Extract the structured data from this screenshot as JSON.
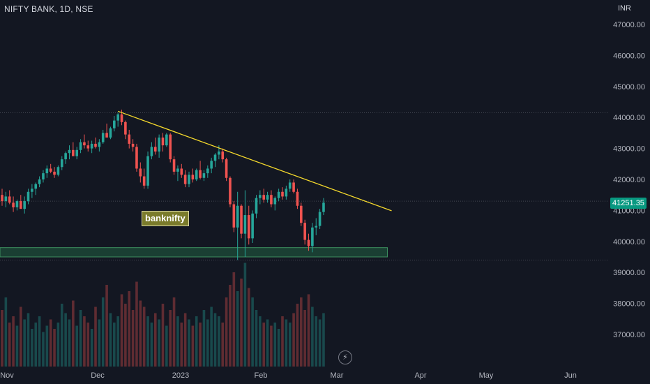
{
  "header": {
    "symbol_title": "NIFTY BANK, 1D, NSE",
    "currency": "INR"
  },
  "annotation_label": "banknifty",
  "last_price_label": "41251.35",
  "event_icon": "lightning-icon",
  "colors": {
    "background": "#131722",
    "up": "#26a69a",
    "down": "#ef5350",
    "trendline": "#f5d92c",
    "zone_fill": "#1e4d3a",
    "zone_border": "#3d8f5f",
    "text": "#b2b5be",
    "hline": "#434651"
  },
  "chart_data": {
    "type": "candlestick",
    "title": "NIFTY BANK, 1D, NSE",
    "y_axis": {
      "ticks": [
        "47000.00",
        "46000.00",
        "45000.00",
        "44000.00",
        "43000.00",
        "42000.00",
        "41000.00",
        "40000.00",
        "39000.00",
        "38000.00",
        "37000.00"
      ],
      "range": [
        36000,
        47500
      ]
    },
    "x_axis": {
      "labels": [
        "Nov",
        "Dec",
        "2023",
        "Feb",
        "Mar",
        "Apr",
        "May",
        "Jun"
      ]
    },
    "last_price": 41251.35,
    "ohlc": [
      [
        41500,
        41700,
        41150,
        41300
      ],
      [
        41300,
        41600,
        41100,
        41450
      ],
      [
        41450,
        41650,
        41200,
        41250
      ],
      [
        41250,
        41450,
        40950,
        41100
      ],
      [
        41100,
        41350,
        41000,
        41300
      ],
      [
        41300,
        41500,
        41150,
        41050
      ],
      [
        41050,
        41450,
        40900,
        41300
      ],
      [
        41300,
        41700,
        41200,
        41600
      ],
      [
        41600,
        41850,
        41400,
        41700
      ],
      [
        41700,
        41900,
        41500,
        41850
      ],
      [
        41850,
        42100,
        41750,
        42000
      ],
      [
        42000,
        42300,
        41900,
        42200
      ],
      [
        42200,
        42450,
        42050,
        42350
      ],
      [
        42350,
        42500,
        42200,
        42250
      ],
      [
        42250,
        42400,
        42050,
        42150
      ],
      [
        42150,
        42450,
        42100,
        42400
      ],
      [
        42400,
        42750,
        42300,
        42650
      ],
      [
        42650,
        42900,
        42500,
        42850
      ],
      [
        42850,
        43100,
        42650,
        42950
      ],
      [
        42950,
        43200,
        42800,
        42750
      ],
      [
        42750,
        43050,
        42650,
        42950
      ],
      [
        42950,
        43300,
        42850,
        43200
      ],
      [
        43200,
        43450,
        43000,
        43100
      ],
      [
        43100,
        43250,
        42900,
        43000
      ],
      [
        43000,
        43250,
        42850,
        43150
      ],
      [
        43150,
        43350,
        43000,
        43050
      ],
      [
        43050,
        43300,
        42900,
        43200
      ],
      [
        43200,
        43600,
        43150,
        43500
      ],
      [
        43500,
        43800,
        43400,
        43350
      ],
      [
        43350,
        43700,
        43300,
        43650
      ],
      [
        43650,
        44050,
        43550,
        43900
      ],
      [
        43900,
        44150,
        43700,
        44100
      ],
      [
        44100,
        44250,
        43750,
        43850
      ],
      [
        43850,
        43900,
        43300,
        43450
      ],
      [
        43450,
        43600,
        43000,
        43150
      ],
      [
        43150,
        43300,
        42900,
        43050
      ],
      [
        43050,
        43150,
        42250,
        42350
      ],
      [
        42350,
        42550,
        41900,
        42100
      ],
      [
        42100,
        42350,
        41700,
        41800
      ],
      [
        41800,
        42900,
        41700,
        42750
      ],
      [
        42750,
        43200,
        42650,
        43050
      ],
      [
        43050,
        43350,
        42800,
        42900
      ],
      [
        42900,
        43450,
        42700,
        43350
      ],
      [
        43350,
        43500,
        42900,
        43100
      ],
      [
        43100,
        43500,
        43050,
        43450
      ],
      [
        43450,
        43500,
        42550,
        42650
      ],
      [
        42650,
        42750,
        42150,
        42250
      ],
      [
        42250,
        42450,
        41950,
        42350
      ],
      [
        42350,
        42500,
        42050,
        42150
      ],
      [
        42150,
        42300,
        41750,
        41850
      ],
      [
        41850,
        42250,
        41750,
        42150
      ],
      [
        42150,
        42350,
        41900,
        42000
      ],
      [
        42000,
        42350,
        41950,
        42300
      ],
      [
        42300,
        42600,
        42000,
        42050
      ],
      [
        42050,
        42300,
        41950,
        42200
      ],
      [
        42200,
        42450,
        42050,
        42350
      ],
      [
        42350,
        42700,
        42200,
        42600
      ],
      [
        42600,
        42850,
        42400,
        42800
      ],
      [
        42800,
        43100,
        42650,
        42900
      ],
      [
        42900,
        43000,
        42550,
        42650
      ],
      [
        42650,
        42700,
        41950,
        42050
      ],
      [
        42050,
        42100,
        41100,
        41200
      ],
      [
        41200,
        41300,
        40300,
        40450
      ],
      [
        40450,
        41600,
        39400,
        41150
      ],
      [
        41150,
        41200,
        40100,
        40250
      ],
      [
        40250,
        41650,
        39500,
        40850
      ],
      [
        40850,
        41150,
        39900,
        40100
      ],
      [
        40100,
        41000,
        39950,
        40900
      ],
      [
        40900,
        41500,
        40750,
        41400
      ],
      [
        41400,
        41650,
        41200,
        41500
      ],
      [
        41500,
        41700,
        41250,
        41350
      ],
      [
        41350,
        41600,
        41250,
        41500
      ],
      [
        41500,
        41650,
        41100,
        41200
      ],
      [
        41200,
        41450,
        41000,
        41400
      ],
      [
        41400,
        41700,
        41300,
        41600
      ],
      [
        41600,
        41750,
        41350,
        41450
      ],
      [
        41450,
        41800,
        41350,
        41700
      ],
      [
        41700,
        42000,
        41600,
        41900
      ],
      [
        41900,
        42000,
        41550,
        41600
      ],
      [
        41600,
        41700,
        41050,
        41150
      ],
      [
        41150,
        41250,
        40500,
        40600
      ],
      [
        40600,
        40700,
        39900,
        40050
      ],
      [
        40050,
        40250,
        39700,
        39850
      ],
      [
        39850,
        40600,
        39650,
        40450
      ],
      [
        40450,
        40750,
        40200,
        40500
      ],
      [
        40500,
        41050,
        40400,
        40950
      ],
      [
        40950,
        41400,
        40850,
        41250
      ]
    ],
    "volume": [
      1.8,
      2.2,
      1.4,
      1.6,
      1.3,
      1.9,
      1.5,
      1.7,
      1.2,
      1.4,
      1.6,
      1.1,
      1.3,
      1.5,
      1.2,
      1.4,
      2.0,
      1.7,
      1.5,
      2.1,
      1.3,
      1.8,
      1.6,
      1.4,
      1.2,
      1.9,
      1.5,
      2.2,
      2.6,
      1.7,
      1.4,
      1.6,
      2.3,
      2.0,
      2.4,
      1.8,
      2.7,
      2.1,
      1.9,
      1.6,
      1.4,
      1.7,
      1.5,
      2.0,
      1.3,
      1.8,
      2.2,
      1.6,
      1.4,
      1.7,
      1.5,
      1.3,
      1.6,
      1.4,
      1.8,
      1.5,
      1.9,
      1.7,
      1.6,
      1.4,
      2.2,
      2.6,
      3.0,
      2.4,
      2.8,
      3.3,
      2.5,
      2.2,
      1.8,
      1.6,
      1.4,
      1.5,
      1.3,
      1.4,
      1.2,
      1.6,
      1.5,
      1.4,
      1.7,
      2.0,
      2.2,
      1.8,
      2.3,
      1.9,
      1.6,
      1.5,
      1.7
    ],
    "trendline": {
      "from": {
        "bar": 31,
        "price": 44200
      },
      "to": {
        "bar": 93,
        "price": 40900
      }
    },
    "horizontal_levels": [
      44150,
      41300,
      39400
    ],
    "support_zone": {
      "from_bar": 0,
      "to_bar": 93,
      "top": 39800,
      "bottom": 39500
    }
  }
}
